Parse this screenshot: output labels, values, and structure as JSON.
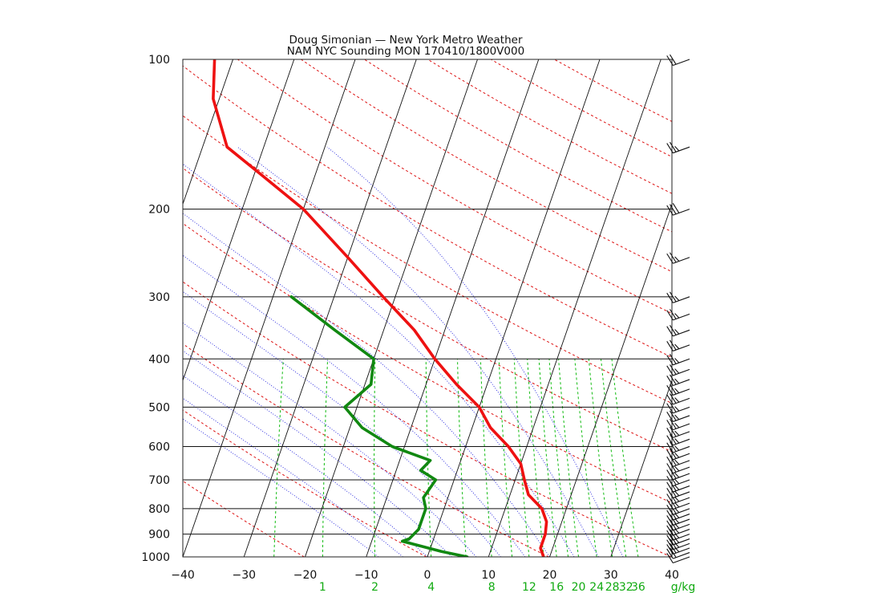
{
  "title": {
    "line1": "Doug Simonian — New York Metro Weather",
    "line2": "NAM NYC Sounding  MON 170410/1800V000"
  },
  "colors": {
    "temperature": "#ee1111",
    "dewpoint": "#118811",
    "isotherm": "#111111",
    "isobar": "#111111",
    "dry_adiabat": "#dd1111",
    "moist_adiabat": "#2222dd",
    "mixing_ratio": "#11bb11",
    "mixing_ratio_label": "#11aa11"
  },
  "chart_data": {
    "type": "skew-t log-p sounding",
    "title": "NAM NYC Sounding  MON 170410/1800V000",
    "xlim": [
      -40,
      40
    ],
    "ylim": [
      1000,
      100
    ],
    "y_scale": "log (inverted)",
    "x_ticks": [
      -40,
      -30,
      -20,
      -10,
      0,
      10,
      20,
      30,
      40
    ],
    "x_tick_labels": [
      "−40",
      "−30",
      "−20",
      "−10",
      "0",
      "10",
      "20",
      "30",
      "40"
    ],
    "pressure_levels": [
      1000,
      900,
      800,
      700,
      600,
      500,
      400,
      300,
      200,
      100
    ],
    "pressure_labels": [
      "1000",
      "900",
      "800",
      "700",
      "600",
      "500",
      "400",
      "300",
      "200",
      "100"
    ],
    "mixing_ratio_labels": [
      "1",
      "2",
      "4",
      "8",
      "12",
      "16",
      "20",
      "24",
      "28",
      "32",
      "36"
    ],
    "mixing_ratio_values": [
      1,
      2,
      4,
      8,
      12,
      16,
      20,
      24,
      28,
      32,
      36
    ],
    "mixing_ratio_unit": "g/kg",
    "grid": true,
    "series": [
      {
        "key": "temperature",
        "points": [
          [
            19,
            1000
          ],
          [
            18,
            960
          ],
          [
            18,
            900
          ],
          [
            17.5,
            850
          ],
          [
            16,
            800
          ],
          [
            13,
            750
          ],
          [
            11.5,
            700
          ],
          [
            10,
            650
          ],
          [
            7,
            600
          ],
          [
            3,
            550
          ],
          [
            0,
            500
          ],
          [
            -5,
            450
          ],
          [
            -10,
            400
          ],
          [
            -15,
            350
          ],
          [
            -22,
            300
          ],
          [
            -30,
            250
          ],
          [
            -40,
            200
          ],
          [
            -49,
            170
          ],
          [
            -56,
            150
          ],
          [
            -61,
            120
          ],
          [
            -63,
            100
          ]
        ]
      },
      {
        "key": "dewpoint",
        "points": [
          [
            6.5,
            1000
          ],
          [
            2,
            975
          ],
          [
            -5,
            930
          ],
          [
            -4,
            920
          ],
          [
            -3,
            880
          ],
          [
            -3,
            850
          ],
          [
            -3,
            800
          ],
          [
            -4,
            760
          ],
          [
            -3,
            700
          ],
          [
            -6,
            670
          ],
          [
            -5,
            640
          ],
          [
            -12,
            600
          ],
          [
            -18,
            550
          ],
          [
            -22,
            500
          ],
          [
            -19,
            450
          ],
          [
            -20,
            400
          ],
          [
            -28,
            350
          ],
          [
            -37,
            300
          ]
        ]
      }
    ],
    "wind_barbs": [
      {
        "p": 1000,
        "speed_kt": 10,
        "dir_deg": 250
      },
      {
        "p": 980,
        "speed_kt": 20,
        "dir_deg": 250
      },
      {
        "p": 960,
        "speed_kt": 25,
        "dir_deg": 250
      },
      {
        "p": 940,
        "speed_kt": 25,
        "dir_deg": 250
      },
      {
        "p": 920,
        "speed_kt": 25,
        "dir_deg": 250
      },
      {
        "p": 900,
        "speed_kt": 25,
        "dir_deg": 250
      },
      {
        "p": 880,
        "speed_kt": 25,
        "dir_deg": 250
      },
      {
        "p": 860,
        "speed_kt": 25,
        "dir_deg": 250
      },
      {
        "p": 840,
        "speed_kt": 25,
        "dir_deg": 250
      },
      {
        "p": 820,
        "speed_kt": 25,
        "dir_deg": 250
      },
      {
        "p": 800,
        "speed_kt": 25,
        "dir_deg": 250
      },
      {
        "p": 780,
        "speed_kt": 25,
        "dir_deg": 250
      },
      {
        "p": 760,
        "speed_kt": 25,
        "dir_deg": 250
      },
      {
        "p": 740,
        "speed_kt": 25,
        "dir_deg": 250
      },
      {
        "p": 720,
        "speed_kt": 25,
        "dir_deg": 250
      },
      {
        "p": 700,
        "speed_kt": 25,
        "dir_deg": 250
      },
      {
        "p": 680,
        "speed_kt": 25,
        "dir_deg": 250
      },
      {
        "p": 660,
        "speed_kt": 25,
        "dir_deg": 250
      },
      {
        "p": 640,
        "speed_kt": 25,
        "dir_deg": 250
      },
      {
        "p": 620,
        "speed_kt": 25,
        "dir_deg": 250
      },
      {
        "p": 600,
        "speed_kt": 25,
        "dir_deg": 250
      },
      {
        "p": 580,
        "speed_kt": 25,
        "dir_deg": 250
      },
      {
        "p": 560,
        "speed_kt": 25,
        "dir_deg": 250
      },
      {
        "p": 540,
        "speed_kt": 25,
        "dir_deg": 250
      },
      {
        "p": 520,
        "speed_kt": 25,
        "dir_deg": 250
      },
      {
        "p": 500,
        "speed_kt": 25,
        "dir_deg": 250
      },
      {
        "p": 480,
        "speed_kt": 25,
        "dir_deg": 250
      },
      {
        "p": 460,
        "speed_kt": 25,
        "dir_deg": 250
      },
      {
        "p": 440,
        "speed_kt": 25,
        "dir_deg": 250
      },
      {
        "p": 420,
        "speed_kt": 25,
        "dir_deg": 250
      },
      {
        "p": 400,
        "speed_kt": 25,
        "dir_deg": 250
      },
      {
        "p": 375,
        "speed_kt": 25,
        "dir_deg": 250
      },
      {
        "p": 350,
        "speed_kt": 25,
        "dir_deg": 250
      },
      {
        "p": 325,
        "speed_kt": 25,
        "dir_deg": 250
      },
      {
        "p": 300,
        "speed_kt": 25,
        "dir_deg": 250
      },
      {
        "p": 250,
        "speed_kt": 25,
        "dir_deg": 250
      },
      {
        "p": 200,
        "speed_kt": 30,
        "dir_deg": 250
      },
      {
        "p": 150,
        "speed_kt": 25,
        "dir_deg": 250
      },
      {
        "p": 100,
        "speed_kt": 20,
        "dir_deg": 250
      }
    ]
  }
}
